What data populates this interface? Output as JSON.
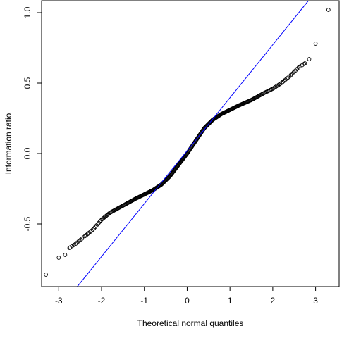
{
  "chart_data": {
    "type": "scatter",
    "xlabel": "Theoretical normal quantiles",
    "ylabel": "Information ratio",
    "xlim": [
      -3.4,
      3.55
    ],
    "ylim": [
      -0.945,
      1.085
    ],
    "x_ticks": [
      -3,
      -2,
      -1,
      0,
      1,
      2,
      3
    ],
    "y_ticks": [
      -0.5,
      0.0,
      0.5,
      1.0
    ],
    "x_tick_labels": [
      "-3",
      "-2",
      "-1",
      "0",
      "1",
      "2",
      "3"
    ],
    "y_tick_labels": [
      "-0.5",
      "0.0",
      "0.5",
      "1.0"
    ],
    "reference_line": {
      "slope": 0.376,
      "intercept": 0.02,
      "color": "#0000ff"
    },
    "point_color": "#000000",
    "qq_curve": [
      [
        -3.3,
        -0.86
      ],
      [
        -3.0,
        -0.74
      ],
      [
        -2.85,
        -0.72
      ],
      [
        -2.75,
        -0.67
      ],
      [
        -2.6,
        -0.64
      ],
      [
        -2.4,
        -0.59
      ],
      [
        -2.2,
        -0.54
      ],
      [
        -2.0,
        -0.47
      ],
      [
        -1.8,
        -0.42
      ],
      [
        -1.5,
        -0.37
      ],
      [
        -1.2,
        -0.32
      ],
      [
        -1.0,
        -0.29
      ],
      [
        -0.8,
        -0.26
      ],
      [
        -0.6,
        -0.22
      ],
      [
        -0.4,
        -0.16
      ],
      [
        -0.2,
        -0.08
      ],
      [
        0.0,
        0.0
      ],
      [
        0.2,
        0.09
      ],
      [
        0.4,
        0.18
      ],
      [
        0.6,
        0.24
      ],
      [
        0.8,
        0.28
      ],
      [
        1.0,
        0.31
      ],
      [
        1.2,
        0.34
      ],
      [
        1.5,
        0.38
      ],
      [
        1.8,
        0.43
      ],
      [
        2.0,
        0.46
      ],
      [
        2.2,
        0.5
      ],
      [
        2.4,
        0.55
      ],
      [
        2.6,
        0.61
      ],
      [
        2.75,
        0.64
      ],
      [
        2.85,
        0.67
      ],
      [
        3.0,
        0.78
      ],
      [
        3.3,
        1.02
      ]
    ]
  }
}
